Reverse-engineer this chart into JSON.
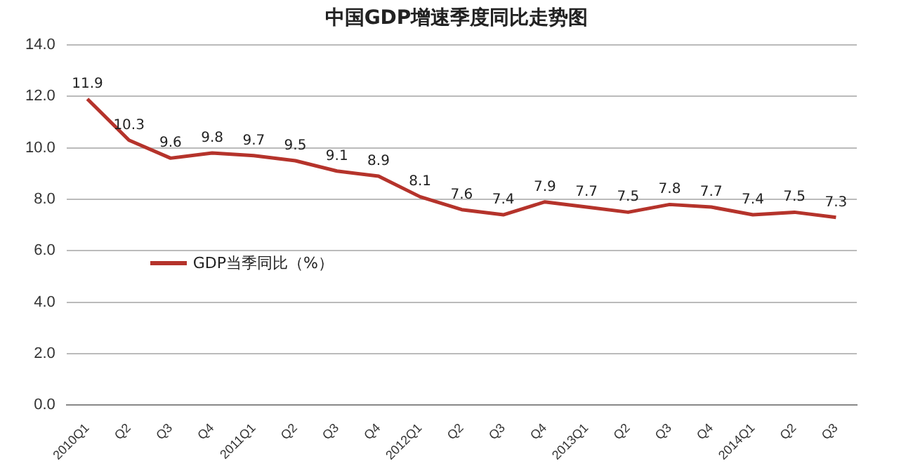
{
  "chart_data": {
    "type": "line",
    "title": "中国GDP增速季度同比走势图",
    "categories": [
      "2010Q1",
      "Q2",
      "Q3",
      "Q4",
      "2011Q1",
      "Q2",
      "Q3",
      "Q4",
      "2012Q1",
      "Q2",
      "Q3",
      "Q4",
      "2013Q1",
      "Q2",
      "Q3",
      "Q4",
      "2014Q1",
      "Q2",
      "Q3"
    ],
    "series": [
      {
        "name": "GDP当季同比（%）",
        "color": "#b5332b",
        "values": [
          11.9,
          10.3,
          9.6,
          9.8,
          9.7,
          9.5,
          9.1,
          8.9,
          8.1,
          7.6,
          7.4,
          7.9,
          7.7,
          7.5,
          7.8,
          7.7,
          7.4,
          7.5,
          7.3
        ]
      }
    ],
    "ylim": [
      0,
      14
    ],
    "yticks": [
      {
        "value": 0,
        "label": "0.0"
      },
      {
        "value": 2,
        "label": "2.0"
      },
      {
        "value": 4,
        "label": "4.0"
      },
      {
        "value": 6,
        "label": "6.0"
      },
      {
        "value": 8,
        "label": "8.0"
      },
      {
        "value": 10,
        "label": "10.0"
      },
      {
        "value": 12,
        "label": "12.0"
      },
      {
        "value": 14,
        "label": "14.0"
      }
    ],
    "grid": "y",
    "legend": "left",
    "data_labels": true,
    "marker": "none",
    "line_style": "solid"
  }
}
